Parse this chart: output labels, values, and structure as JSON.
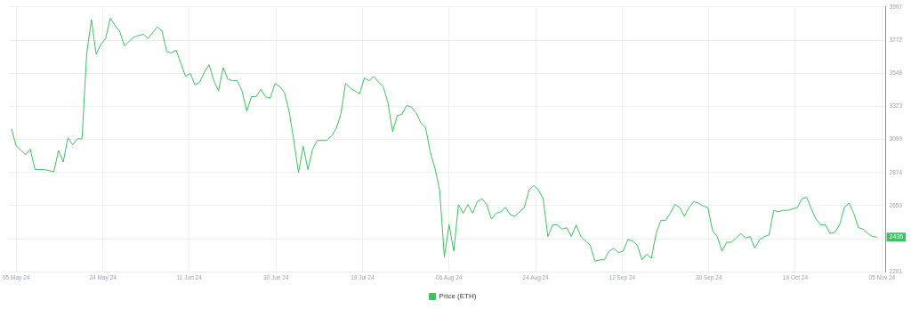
{
  "chart_data": {
    "type": "line",
    "x": [
      "2024-05-04",
      "2024-05-05",
      "2024-05-07",
      "2024-05-08",
      "2024-05-09",
      "2024-05-11",
      "2024-05-13",
      "2024-05-14",
      "2024-05-15",
      "2024-05-16",
      "2024-05-17",
      "2024-05-18",
      "2024-05-19",
      "2024-05-20",
      "2024-05-21",
      "2024-05-22",
      "2024-05-23",
      "2024-05-24",
      "2024-05-25",
      "2024-05-26",
      "2024-05-27",
      "2024-05-28",
      "2024-05-29",
      "2024-05-30",
      "2024-05-31",
      "2024-06-01",
      "2024-06-02",
      "2024-06-03",
      "2024-06-04",
      "2024-06-05",
      "2024-06-06",
      "2024-06-07",
      "2024-06-08",
      "2024-06-09",
      "2024-06-10",
      "2024-06-11",
      "2024-06-12",
      "2024-06-13",
      "2024-06-14",
      "2024-06-15",
      "2024-06-16",
      "2024-06-17",
      "2024-06-18",
      "2024-06-19",
      "2024-06-20",
      "2024-06-21",
      "2024-06-22",
      "2024-06-23",
      "2024-06-24",
      "2024-06-25",
      "2024-06-26",
      "2024-06-27",
      "2024-06-28",
      "2024-06-29",
      "2024-06-30",
      "2024-07-01",
      "2024-07-02",
      "2024-07-03",
      "2024-07-04",
      "2024-07-05",
      "2024-07-06",
      "2024-07-07",
      "2024-07-08",
      "2024-07-09",
      "2024-07-10",
      "2024-07-11",
      "2024-07-12",
      "2024-07-13",
      "2024-07-14",
      "2024-07-15",
      "2024-07-16",
      "2024-07-17",
      "2024-07-18",
      "2024-07-19",
      "2024-07-20",
      "2024-07-21",
      "2024-07-22",
      "2024-07-23",
      "2024-07-24",
      "2024-07-25",
      "2024-07-26",
      "2024-07-27",
      "2024-07-28",
      "2024-07-29",
      "2024-07-30",
      "2024-07-31",
      "2024-08-01",
      "2024-08-02",
      "2024-08-03",
      "2024-08-04",
      "2024-08-05",
      "2024-08-06",
      "2024-08-07",
      "2024-08-08",
      "2024-08-09",
      "2024-08-10",
      "2024-08-11",
      "2024-08-12",
      "2024-08-13",
      "2024-08-14",
      "2024-08-15",
      "2024-08-16",
      "2024-08-17",
      "2024-08-18",
      "2024-08-19",
      "2024-08-20",
      "2024-08-21",
      "2024-08-22",
      "2024-08-23",
      "2024-08-24",
      "2024-08-25",
      "2024-08-26",
      "2024-08-27",
      "2024-08-28",
      "2024-08-29",
      "2024-08-30",
      "2024-08-31",
      "2024-09-01",
      "2024-09-02",
      "2024-09-03",
      "2024-09-04",
      "2024-09-05",
      "2024-09-06",
      "2024-09-07",
      "2024-09-08",
      "2024-09-09",
      "2024-09-10",
      "2024-09-11",
      "2024-09-12",
      "2024-09-13",
      "2024-09-14",
      "2024-09-15",
      "2024-09-16",
      "2024-09-17",
      "2024-09-18",
      "2024-09-19",
      "2024-09-20",
      "2024-09-21",
      "2024-09-22",
      "2024-09-23",
      "2024-09-24",
      "2024-09-25",
      "2024-09-26",
      "2024-09-27",
      "2024-09-28",
      "2024-09-29",
      "2024-09-30",
      "2024-10-01",
      "2024-10-02",
      "2024-10-03",
      "2024-10-04",
      "2024-10-05",
      "2024-10-06",
      "2024-10-07",
      "2024-10-08",
      "2024-10-09",
      "2024-10-10",
      "2024-10-11",
      "2024-10-12",
      "2024-10-13",
      "2024-10-14",
      "2024-10-15",
      "2024-10-16",
      "2024-10-17",
      "2024-10-18",
      "2024-10-19",
      "2024-10-20",
      "2024-10-21",
      "2024-10-22",
      "2024-10-23",
      "2024-10-24",
      "2024-10-25",
      "2024-10-26",
      "2024-10-27",
      "2024-10-28",
      "2024-10-29",
      "2024-10-30",
      "2024-10-31",
      "2024-11-01",
      "2024-11-02",
      "2024-11-03",
      "2024-11-04"
    ],
    "series": [
      {
        "name": "Price (ETH)",
        "color": "#3bc35d",
        "values": [
          3171,
          3055,
          2995,
          3033,
          2894,
          2894,
          2879,
          3024,
          2945,
          3111,
          3063,
          3103,
          3103,
          3685,
          3912,
          3677,
          3744,
          3783,
          3922,
          3872,
          3833,
          3734,
          3764,
          3793,
          3803,
          3813,
          3783,
          3823,
          3862,
          3833,
          3695,
          3685,
          3705,
          3616,
          3527,
          3547,
          3468,
          3487,
          3556,
          3606,
          3497,
          3428,
          3586,
          3507,
          3497,
          3497,
          3428,
          3290,
          3389,
          3389,
          3438,
          3389,
          3379,
          3478,
          3458,
          3418,
          3290,
          3092,
          2874,
          3053,
          2894,
          3033,
          3092,
          3092,
          3092,
          3122,
          3171,
          3270,
          3478,
          3448,
          3428,
          3408,
          3517,
          3497,
          3527,
          3487,
          3458,
          3349,
          3152,
          3260,
          3270,
          3329,
          3319,
          3280,
          3210,
          3181,
          3013,
          2904,
          2756,
          2302,
          2521,
          2341,
          2657,
          2598,
          2657,
          2598,
          2677,
          2697,
          2657,
          2558,
          2598,
          2608,
          2637,
          2588,
          2578,
          2608,
          2637,
          2756,
          2786,
          2756,
          2697,
          2440,
          2519,
          2519,
          2490,
          2500,
          2440,
          2519,
          2440,
          2410,
          2381,
          2272,
          2282,
          2282,
          2341,
          2361,
          2331,
          2341,
          2420,
          2410,
          2381,
          2282,
          2321,
          2292,
          2460,
          2549,
          2549,
          2598,
          2657,
          2637,
          2578,
          2637,
          2677,
          2667,
          2647,
          2637,
          2480,
          2440,
          2341,
          2401,
          2401,
          2430,
          2460,
          2430,
          2440,
          2361,
          2420,
          2440,
          2450,
          2618,
          2608,
          2618,
          2618,
          2627,
          2637,
          2697,
          2707,
          2627,
          2558,
          2519,
          2519,
          2460,
          2470,
          2519,
          2637,
          2667,
          2598,
          2500,
          2490,
          2460,
          2440,
          2436
        ]
      }
    ],
    "xlim": [
      "2024-05-03T12:00",
      "2024-11-05T19:00"
    ],
    "xticks": [
      {
        "value": "2024-05-05",
        "label": "05 May 24"
      },
      {
        "value": "2024-05-23T10:00",
        "label": "24 May 24"
      },
      {
        "value": "2024-06-10T19:00",
        "label": "11 Jun 24"
      },
      {
        "value": "2024-06-29T05:00",
        "label": "30 Jun 24"
      },
      {
        "value": "2024-07-17T14:00",
        "label": "19 Jul 24"
      },
      {
        "value": "2024-08-05",
        "label": "06 Aug 24"
      },
      {
        "value": "2024-08-23T10:00",
        "label": "24 Aug 24"
      },
      {
        "value": "2024-09-10T19:00",
        "label": "12 Sep 24"
      },
      {
        "value": "2024-09-29T05:00",
        "label": "30 Sep 24"
      },
      {
        "value": "2024-10-17T14:00",
        "label": "19 Oct 24"
      },
      {
        "value": "2024-11-05",
        "label": "05 Nov 24"
      }
    ],
    "ylim": [
      2201,
      3997
    ],
    "yticks": [
      2201,
      {
        "value": 2425.5,
        "label": null
      },
      2650,
      2874,
      3099,
      3323,
      3548,
      3772,
      3997
    ],
    "annotations": [
      {
        "text": "2436",
        "x": "2024-11-04",
        "y": 2436
      }
    ],
    "grid": true,
    "legend": "bottom",
    "marker": "none",
    "line_style": "solid"
  }
}
